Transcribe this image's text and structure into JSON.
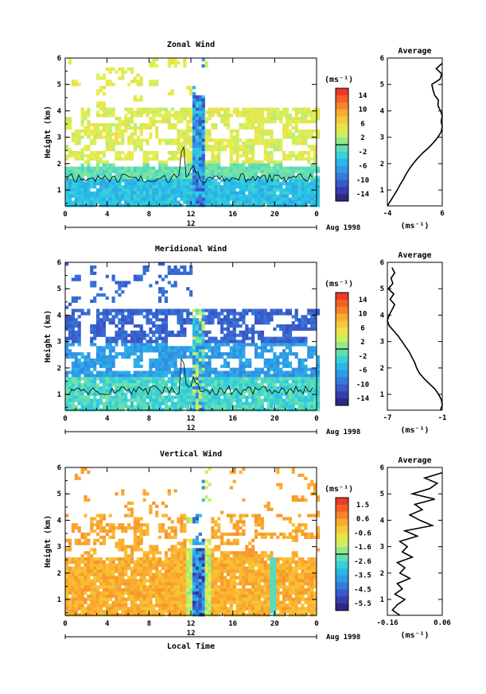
{
  "figure": {
    "panels": [
      {
        "title": "Zonal Wind",
        "ylabel": "Height (km)",
        "yticks": [
          "1",
          "2",
          "3",
          "4",
          "5",
          "6"
        ],
        "xticks": [
          "0",
          "4",
          "8",
          "12",
          "16",
          "20",
          "0"
        ],
        "date_marker": "12",
        "date_label": "Aug 1998",
        "cbar_unit": "(ms⁻¹)",
        "cbar_ticks": [
          "14",
          "10",
          "6",
          "2",
          "-2",
          "-6",
          "-10",
          "-14"
        ],
        "avg_title": "Average",
        "avg_xticks": [
          "-4",
          "6"
        ],
        "avg_unit": "(ms⁻¹)"
      },
      {
        "title": "Meridional Wind",
        "ylabel": "Height (km)",
        "yticks": [
          "1",
          "2",
          "3",
          "4",
          "5",
          "6"
        ],
        "xticks": [
          "0",
          "4",
          "8",
          "12",
          "16",
          "20",
          "0"
        ],
        "date_marker": "12",
        "date_label": "Aug 1998",
        "cbar_unit": "(ms⁻¹)",
        "cbar_ticks": [
          "14",
          "10",
          "6",
          "2",
          "-2",
          "-6",
          "-10",
          "-14"
        ],
        "avg_title": "Average",
        "avg_xticks": [
          "-7",
          "-1"
        ],
        "avg_unit": "(ms⁻¹)"
      },
      {
        "title": "Vertical Wind",
        "ylabel": "Height (km)",
        "yticks": [
          "1",
          "2",
          "3",
          "4",
          "5",
          "6"
        ],
        "xticks": [
          "0",
          "4",
          "8",
          "12",
          "16",
          "20",
          "0"
        ],
        "date_marker": "12",
        "date_label": "Aug 1998",
        "xlabel": "Local Time",
        "cbar_unit": "(ms⁻¹)",
        "cbar_ticks": [
          "1.5",
          "0.6",
          "-0.6",
          "-1.6",
          "-2.6",
          "-3.5",
          "-4.5",
          "-5.5"
        ],
        "avg_title": "Average",
        "avg_xticks": [
          "-0.16",
          "0.06"
        ],
        "avg_unit": "(ms⁻¹)"
      }
    ]
  },
  "chart_data": [
    {
      "type": "heatmap",
      "title": "Zonal Wind",
      "xlabel": "",
      "ylabel": "Height (km)",
      "xlim": [
        0,
        24
      ],
      "ylim": [
        0.4,
        6
      ],
      "clim": [
        -16,
        16
      ],
      "colorbar_ticks": [
        14,
        10,
        6,
        2,
        -2,
        -6,
        -10,
        -14
      ],
      "average_profile": {
        "title": "Average",
        "xlim": [
          -4,
          6
        ],
        "height": [
          0.4,
          0.6,
          0.8,
          1.0,
          1.2,
          1.4,
          1.6,
          1.8,
          2.0,
          2.2,
          2.4,
          2.6,
          2.8,
          3.0,
          3.2,
          3.4,
          3.6,
          3.8,
          4.0,
          4.2,
          4.4,
          4.6,
          4.8,
          5.0,
          5.2,
          5.4,
          5.6,
          5.8
        ],
        "value": [
          -4.0,
          -3.4,
          -2.8,
          -2.2,
          -1.7,
          -1.1,
          -0.6,
          0.0,
          0.7,
          1.5,
          2.4,
          3.5,
          4.4,
          5.2,
          5.8,
          6.0,
          5.8,
          6.0,
          5.7,
          5.2,
          5.3,
          4.6,
          4.3,
          4.1,
          5.6,
          5.9,
          4.9,
          6.0
        ]
      }
    },
    {
      "type": "heatmap",
      "title": "Meridional Wind",
      "xlabel": "",
      "ylabel": "Height (km)",
      "xlim": [
        0,
        24
      ],
      "ylim": [
        0.4,
        6
      ],
      "clim": [
        -16,
        16
      ],
      "colorbar_ticks": [
        14,
        10,
        6,
        2,
        -2,
        -6,
        -10,
        -14
      ],
      "average_profile": {
        "title": "Average",
        "xlim": [
          -7,
          -1
        ],
        "height": [
          0.4,
          0.6,
          0.8,
          1.0,
          1.2,
          1.4,
          1.6,
          1.8,
          2.0,
          2.2,
          2.4,
          2.6,
          2.8,
          3.0,
          3.2,
          3.4,
          3.6,
          3.8,
          4.0,
          4.2,
          4.4,
          4.6,
          4.8,
          5.0,
          5.2,
          5.4,
          5.6,
          5.8
        ],
        "value": [
          -1.2,
          -1.0,
          -1.1,
          -1.4,
          -1.8,
          -2.4,
          -3.0,
          -3.5,
          -3.8,
          -4.0,
          -4.3,
          -4.6,
          -5.0,
          -5.4,
          -5.8,
          -6.3,
          -6.8,
          -7.0,
          -6.8,
          -6.5,
          -6.2,
          -6.7,
          -6.3,
          -6.9,
          -6.4,
          -6.6,
          -6.2,
          -6.5
        ]
      }
    },
    {
      "type": "heatmap",
      "title": "Vertical Wind",
      "xlabel": "Local Time",
      "ylabel": "Height (km)",
      "xlim": [
        0,
        24
      ],
      "ylim": [
        0.4,
        6
      ],
      "clim": [
        -6,
        2
      ],
      "colorbar_ticks": [
        1.5,
        0.6,
        -0.6,
        -1.6,
        -2.6,
        -3.5,
        -4.5,
        -5.5
      ],
      "average_profile": {
        "title": "Average",
        "xlim": [
          -0.16,
          0.06
        ],
        "height": [
          0.4,
          0.6,
          0.8,
          1.0,
          1.2,
          1.4,
          1.6,
          1.8,
          2.0,
          2.2,
          2.4,
          2.6,
          2.8,
          3.0,
          3.2,
          3.4,
          3.6,
          3.8,
          4.0,
          4.2,
          4.4,
          4.6,
          4.8,
          5.0,
          5.2,
          5.4,
          5.6,
          5.8
        ],
        "value": [
          -0.11,
          -0.14,
          -0.12,
          -0.09,
          -0.13,
          -0.1,
          -0.12,
          -0.07,
          -0.11,
          -0.09,
          -0.12,
          -0.06,
          -0.1,
          -0.08,
          -0.11,
          -0.04,
          -0.09,
          0.02,
          -0.03,
          -0.07,
          -0.02,
          -0.05,
          0.03,
          -0.06,
          0.01,
          0.04,
          -0.01,
          0.06
        ]
      }
    }
  ]
}
